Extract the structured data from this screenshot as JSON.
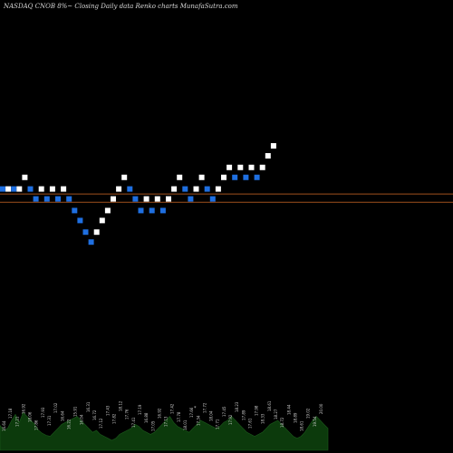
{
  "chart_data": {
    "type": "renko",
    "title": "NASDAQ CNOB 8%~  Closing Daily data  Renko  charts MunafaSutra.com",
    "direction_colors": {
      "up": "#ffffff",
      "down": "#1f6fe0"
    },
    "reference_line_color": "#a0501e",
    "volume_color": "#0c3a0c",
    "bricks": [
      {
        "d": "down",
        "y": 17.8
      },
      {
        "d": "up",
        "y": 17.8
      },
      {
        "d": "down",
        "y": 17.8
      },
      {
        "d": "up",
        "y": 17.8
      },
      {
        "d": "up",
        "y": 18.5
      },
      {
        "d": "down",
        "y": 17.8
      },
      {
        "d": "down",
        "y": 17.2
      },
      {
        "d": "up",
        "y": 17.8
      },
      {
        "d": "down",
        "y": 17.2
      },
      {
        "d": "up",
        "y": 17.8
      },
      {
        "d": "down",
        "y": 17.2
      },
      {
        "d": "up",
        "y": 17.8
      },
      {
        "d": "down",
        "y": 17.2
      },
      {
        "d": "down",
        "y": 16.5
      },
      {
        "d": "down",
        "y": 15.9
      },
      {
        "d": "down",
        "y": 15.2
      },
      {
        "d": "down",
        "y": 14.6
      },
      {
        "d": "up",
        "y": 15.2
      },
      {
        "d": "up",
        "y": 15.9
      },
      {
        "d": "up",
        "y": 16.5
      },
      {
        "d": "up",
        "y": 17.2
      },
      {
        "d": "up",
        "y": 17.8
      },
      {
        "d": "up",
        "y": 18.5
      },
      {
        "d": "down",
        "y": 17.8
      },
      {
        "d": "down",
        "y": 17.2
      },
      {
        "d": "down",
        "y": 16.5
      },
      {
        "d": "up",
        "y": 17.2
      },
      {
        "d": "down",
        "y": 16.5
      },
      {
        "d": "up",
        "y": 17.2
      },
      {
        "d": "down",
        "y": 16.5
      },
      {
        "d": "up",
        "y": 17.2
      },
      {
        "d": "up",
        "y": 17.8
      },
      {
        "d": "up",
        "y": 18.5
      },
      {
        "d": "down",
        "y": 17.8
      },
      {
        "d": "down",
        "y": 17.2
      },
      {
        "d": "up",
        "y": 17.8
      },
      {
        "d": "up",
        "y": 18.5
      },
      {
        "d": "down",
        "y": 17.8
      },
      {
        "d": "down",
        "y": 17.2
      },
      {
        "d": "up",
        "y": 17.8
      },
      {
        "d": "up",
        "y": 18.5
      },
      {
        "d": "up",
        "y": 19.1
      },
      {
        "d": "down",
        "y": 18.5
      },
      {
        "d": "up",
        "y": 19.1
      },
      {
        "d": "down",
        "y": 18.5
      },
      {
        "d": "up",
        "y": 19.1
      },
      {
        "d": "down",
        "y": 18.5
      },
      {
        "d": "up",
        "y": 19.1
      },
      {
        "d": "up",
        "y": 19.8
      },
      {
        "d": "up",
        "y": 20.4
      }
    ],
    "ylim": [
      13.9,
      21.0
    ],
    "reference_lines": [
      17.5,
      17.0
    ],
    "volume": [
      25,
      20,
      22,
      30,
      36,
      28,
      38,
      34,
      30,
      26,
      20,
      17,
      15,
      14,
      18,
      22,
      26,
      28,
      30,
      32,
      34,
      30,
      26,
      22,
      18,
      20,
      16,
      14,
      12,
      10,
      12,
      16,
      18,
      20,
      22,
      26,
      24,
      20,
      18,
      16,
      18,
      22,
      26,
      30,
      34,
      28,
      24,
      22,
      20,
      18,
      22,
      26,
      30,
      28,
      26,
      24,
      22,
      24,
      28,
      30,
      34,
      30,
      26,
      22,
      18,
      16,
      14,
      16,
      18,
      22,
      26,
      28,
      30,
      26,
      22,
      18,
      14,
      12,
      14,
      18,
      24,
      30,
      34,
      30,
      26,
      22
    ],
    "price_ticks": [
      "16.64",
      "17.18",
      "17.21",
      "16.92",
      "18.06",
      "17.86",
      "17.93",
      "17.31",
      "17.02",
      "16.64",
      "16.22",
      "15.91",
      "16.04",
      "16.31",
      "16.72",
      "17.12",
      "17.43",
      "17.82",
      "18.12",
      "17.76",
      "17.41",
      "17.19",
      "16.88",
      "17.05",
      "16.92",
      "17.13",
      "17.42",
      "17.78",
      "18.01",
      "17.66",
      "17.34",
      "17.72",
      "18.04",
      "17.71",
      "17.45",
      "17.92",
      "18.23",
      "17.89",
      "17.61",
      "17.98",
      "18.33",
      "18.61",
      "18.27",
      "18.72",
      "18.44",
      "18.89",
      "18.61",
      "19.02",
      "19.54",
      "20.00"
    ],
    "footer_marker": "*"
  }
}
